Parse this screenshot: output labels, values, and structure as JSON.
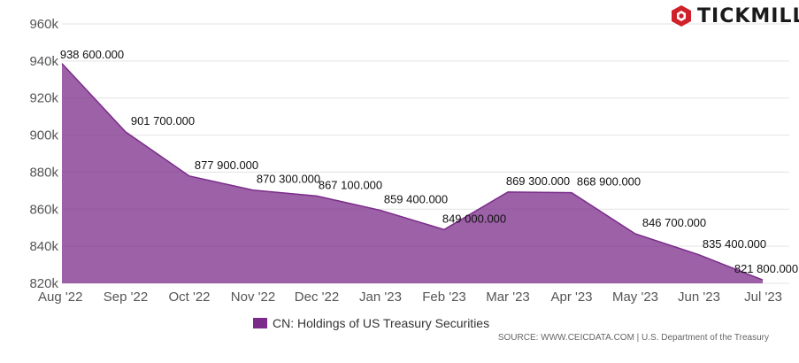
{
  "brand": {
    "name": "TICKMILL",
    "color": "#d0202a"
  },
  "legend": {
    "label": "CN: Holdings of US Treasury Securities",
    "color": "#7b2c8a"
  },
  "source": "SOURCE: WWW.CEICDATA.COM | U.S. Department of the Treasury",
  "chart_data": {
    "type": "area",
    "title": "",
    "xlabel": "",
    "ylabel": "",
    "categories": [
      "Aug '22",
      "Sep '22",
      "Oct '22",
      "Nov '22",
      "Dec '22",
      "Jan '23",
      "Feb '23",
      "Mar '23",
      "Apr '23",
      "May '23",
      "Jun '23",
      "Jul '23"
    ],
    "series": [
      {
        "name": "CN: Holdings of US Treasury Securities",
        "color": "#7b2c8a",
        "values": [
          938600,
          901700,
          877900,
          870300,
          867100,
          859400,
          849000,
          869300,
          868900,
          846700,
          835400,
          821800
        ],
        "labels": [
          "938 600.000",
          "901 700.000",
          "877 900.000",
          "870 300.000",
          "867 100.000",
          "859 400.000",
          "849 000.000",
          "869 300.000",
          "868 900.000",
          "846 700.000",
          "835 400.000",
          "821 800.000"
        ]
      }
    ],
    "ylim": [
      820000,
      960000
    ],
    "yticks": [
      {
        "value": 820000,
        "label": "820k"
      },
      {
        "value": 840000,
        "label": "840k"
      },
      {
        "value": 860000,
        "label": "860k"
      },
      {
        "value": 880000,
        "label": "880k"
      },
      {
        "value": 900000,
        "label": "900k"
      },
      {
        "value": 920000,
        "label": "920k"
      },
      {
        "value": 940000,
        "label": "940k"
      },
      {
        "value": 960000,
        "label": "960k"
      }
    ],
    "grid": true,
    "legend_position": "bottom"
  }
}
